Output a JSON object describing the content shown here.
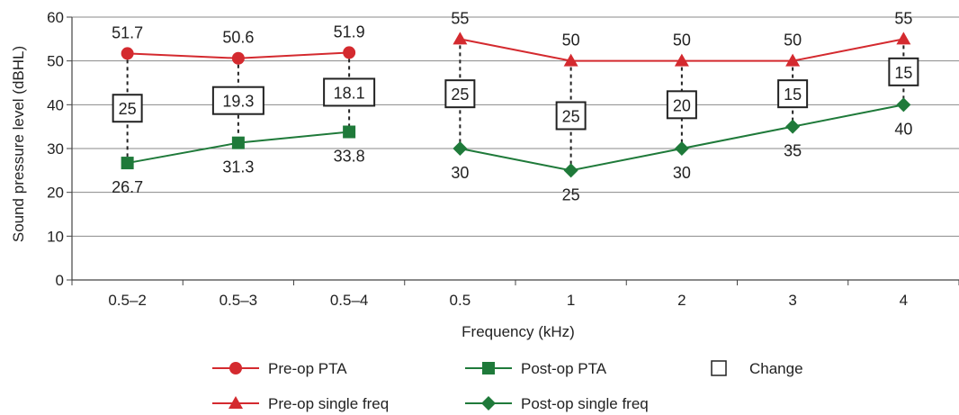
{
  "chart_data": {
    "type": "line",
    "title": "",
    "xlabel": "Frequency (kHz)",
    "ylabel": "Sound pressure level (dBHL)",
    "ylim": [
      0,
      60
    ],
    "yticks": [
      0,
      10,
      20,
      30,
      40,
      50,
      60
    ],
    "grid": "horizontal",
    "legend_position": "bottom",
    "categories": [
      "0.5–2",
      "0.5–3",
      "0.5–4",
      "0.5",
      "1",
      "2",
      "3",
      "4"
    ],
    "series": [
      {
        "name": "Pre-op PTA",
        "marker": "circle",
        "color": "#d42a2f",
        "x": [
          "0.5–2",
          "0.5–3",
          "0.5–4"
        ],
        "values": [
          51.7,
          50.6,
          51.9
        ],
        "labels": [
          "51.7",
          "50.6",
          "51.9"
        ]
      },
      {
        "name": "Post-op PTA",
        "marker": "square",
        "color": "#1f7a3a",
        "x": [
          "0.5–2",
          "0.5–3",
          "0.5–4"
        ],
        "values": [
          26.7,
          31.3,
          33.8
        ],
        "labels": [
          "26.7",
          "31.3",
          "33.8"
        ]
      },
      {
        "name": "Pre-op single freq",
        "marker": "triangle",
        "color": "#d42a2f",
        "x": [
          "0.5",
          "1",
          "2",
          "3",
          "4"
        ],
        "values": [
          55,
          50,
          50,
          50,
          55
        ],
        "labels": [
          "55",
          "50",
          "50",
          "50",
          "55"
        ]
      },
      {
        "name": "Post-op single freq",
        "marker": "diamond",
        "color": "#1f7a3a",
        "x": [
          "0.5",
          "1",
          "2",
          "3",
          "4"
        ],
        "values": [
          30,
          25,
          30,
          35,
          40
        ],
        "labels": [
          "30",
          "25",
          "30",
          "35",
          "40"
        ]
      }
    ],
    "change": {
      "name": "Change",
      "values": [
        25,
        19.3,
        18.1,
        25,
        25,
        20,
        15,
        15
      ],
      "labels": [
        "25",
        "19.3",
        "18.1",
        "25",
        "25",
        "20",
        "15",
        "15"
      ]
    }
  }
}
